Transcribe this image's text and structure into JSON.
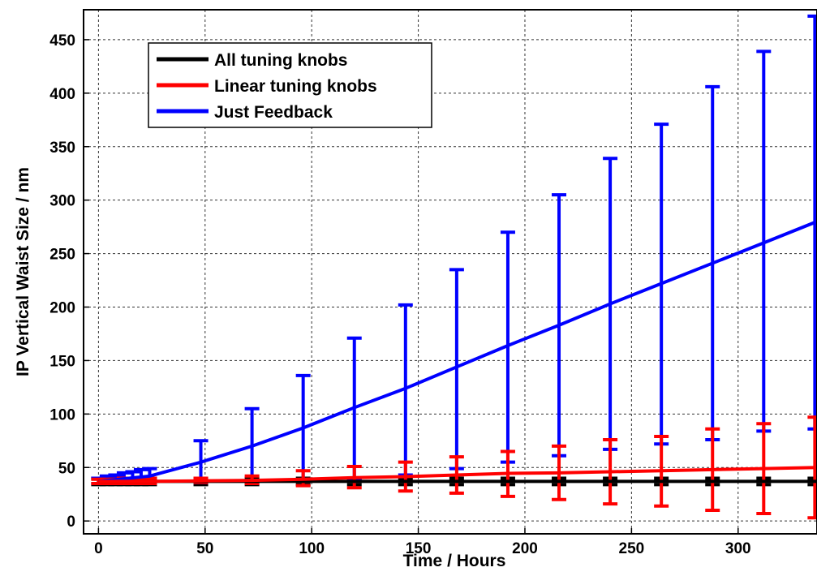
{
  "chart_data": {
    "type": "line",
    "title": "",
    "xlabel": "Time / Hours",
    "ylabel": "IP Vertical Waist Size / nm",
    "xlim": [
      -7,
      337
    ],
    "ylim": [
      -12,
      478
    ],
    "x_ticks": [
      0,
      50,
      100,
      150,
      200,
      250,
      300
    ],
    "y_ticks": [
      0,
      50,
      100,
      150,
      200,
      250,
      300,
      350,
      400,
      450
    ],
    "grid": true,
    "legend_position": "top-left",
    "series": [
      {
        "name": "All tuning knobs",
        "color": "#000000",
        "line_x": [
          0,
          337
        ],
        "line_y": [
          37,
          37
        ],
        "errorbars": [
          {
            "x": 0,
            "low": 34,
            "high": 40
          },
          {
            "x": 4,
            "low": 34,
            "high": 40
          },
          {
            "x": 8,
            "low": 34,
            "high": 40
          },
          {
            "x": 12,
            "low": 34,
            "high": 40
          },
          {
            "x": 16,
            "low": 34,
            "high": 40
          },
          {
            "x": 20,
            "low": 34,
            "high": 40
          },
          {
            "x": 24,
            "low": 34,
            "high": 40
          },
          {
            "x": 48,
            "low": 34,
            "high": 40
          },
          {
            "x": 72,
            "low": 34,
            "high": 40
          },
          {
            "x": 96,
            "low": 34,
            "high": 40
          },
          {
            "x": 120,
            "low": 34,
            "high": 40
          },
          {
            "x": 144,
            "low": 34,
            "high": 40
          },
          {
            "x": 168,
            "low": 34,
            "high": 40
          },
          {
            "x": 192,
            "low": 34,
            "high": 40
          },
          {
            "x": 216,
            "low": 34,
            "high": 40
          },
          {
            "x": 240,
            "low": 34,
            "high": 40
          },
          {
            "x": 264,
            "low": 34,
            "high": 40
          },
          {
            "x": 288,
            "low": 34,
            "high": 40
          },
          {
            "x": 312,
            "low": 34,
            "high": 40
          },
          {
            "x": 336,
            "low": 34,
            "high": 40
          }
        ]
      },
      {
        "name": "Linear tuning knobs",
        "color": "#ff0000",
        "line_x": [
          0,
          24,
          48,
          72,
          96,
          120,
          144,
          168,
          192,
          216,
          240,
          264,
          288,
          312,
          337
        ],
        "line_y": [
          37,
          37,
          37.5,
          38,
          39,
          40.5,
          41.5,
          43,
          44.5,
          45,
          46,
          47,
          48,
          49,
          50
        ],
        "errorbars": [
          {
            "x": 0,
            "low": 35,
            "high": 39
          },
          {
            "x": 4,
            "low": 35,
            "high": 39
          },
          {
            "x": 8,
            "low": 35,
            "high": 39
          },
          {
            "x": 12,
            "low": 35,
            "high": 40
          },
          {
            "x": 16,
            "low": 35,
            "high": 40
          },
          {
            "x": 20,
            "low": 35,
            "high": 40
          },
          {
            "x": 24,
            "low": 35,
            "high": 40
          },
          {
            "x": 48,
            "low": 36,
            "high": 40
          },
          {
            "x": 72,
            "low": 35,
            "high": 42
          },
          {
            "x": 96,
            "low": 33,
            "high": 47
          },
          {
            "x": 120,
            "low": 31,
            "high": 51
          },
          {
            "x": 144,
            "low": 28,
            "high": 55
          },
          {
            "x": 168,
            "low": 26,
            "high": 60
          },
          {
            "x": 192,
            "low": 23,
            "high": 65
          },
          {
            "x": 216,
            "low": 20,
            "high": 70
          },
          {
            "x": 240,
            "low": 16,
            "high": 76
          },
          {
            "x": 264,
            "low": 14,
            "high": 79
          },
          {
            "x": 288,
            "low": 10,
            "high": 86
          },
          {
            "x": 312,
            "low": 7,
            "high": 91
          },
          {
            "x": 336,
            "low": 3,
            "high": 97
          }
        ]
      },
      {
        "name": "Just Feedback",
        "color": "#0000ff",
        "line_x": [
          0,
          24,
          48,
          72,
          96,
          120,
          144,
          168,
          192,
          216,
          240,
          264,
          288,
          312,
          337
        ],
        "line_y": [
          37,
          42,
          55,
          70,
          87,
          106,
          124,
          144,
          164,
          183,
          203,
          222,
          241,
          260,
          280
        ],
        "errorbars": [
          {
            "x": 0,
            "low": 35,
            "high": 40
          },
          {
            "x": 4,
            "low": 35,
            "high": 42
          },
          {
            "x": 8,
            "low": 35,
            "high": 43
          },
          {
            "x": 12,
            "low": 35,
            "high": 45
          },
          {
            "x": 16,
            "low": 35,
            "high": 46
          },
          {
            "x": 20,
            "low": 35,
            "high": 48
          },
          {
            "x": 24,
            "low": 35,
            "high": 49
          },
          {
            "x": 48,
            "low": 36,
            "high": 75
          },
          {
            "x": 72,
            "low": 37,
            "high": 105
          },
          {
            "x": 96,
            "low": 38,
            "high": 136
          },
          {
            "x": 120,
            "low": 39,
            "high": 171
          },
          {
            "x": 144,
            "low": 43,
            "high": 202
          },
          {
            "x": 168,
            "low": 49,
            "high": 235
          },
          {
            "x": 192,
            "low": 55,
            "high": 270
          },
          {
            "x": 216,
            "low": 61,
            "high": 305
          },
          {
            "x": 240,
            "low": 67,
            "high": 339
          },
          {
            "x": 264,
            "low": 72,
            "high": 371
          },
          {
            "x": 288,
            "low": 76,
            "high": 406
          },
          {
            "x": 312,
            "low": 84,
            "high": 439
          },
          {
            "x": 336,
            "low": 86,
            "high": 472
          }
        ]
      }
    ]
  }
}
